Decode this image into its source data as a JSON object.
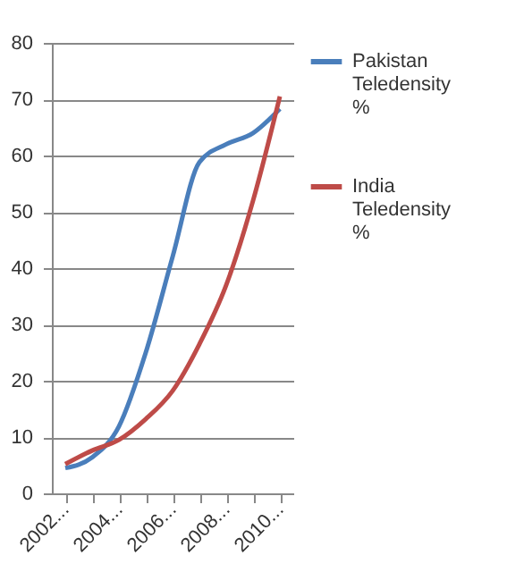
{
  "chart_data": {
    "type": "line",
    "categories": [
      "2002...",
      null,
      "2004...",
      null,
      "2006...",
      null,
      "2008...",
      null,
      "2010..."
    ],
    "series": [
      {
        "name": "Pakistan Teledensity %",
        "color": "#4a7ebb",
        "values": [
          4.5,
          6.4,
          11.9,
          25,
          42,
          58.8,
          62,
          64,
          68.3
        ]
      },
      {
        "name": "India Teledensity %",
        "color": "#be4b48",
        "values": [
          5.2,
          7.6,
          9.5,
          13.2,
          18.2,
          26.5,
          37,
          52,
          70.5
        ]
      }
    ],
    "ylim": [
      0,
      80
    ],
    "yticks": [
      0,
      10,
      20,
      30,
      40,
      50,
      60,
      70,
      80
    ],
    "grid": "y",
    "legend": "right",
    "marker": "none",
    "line_style": "solid"
  }
}
